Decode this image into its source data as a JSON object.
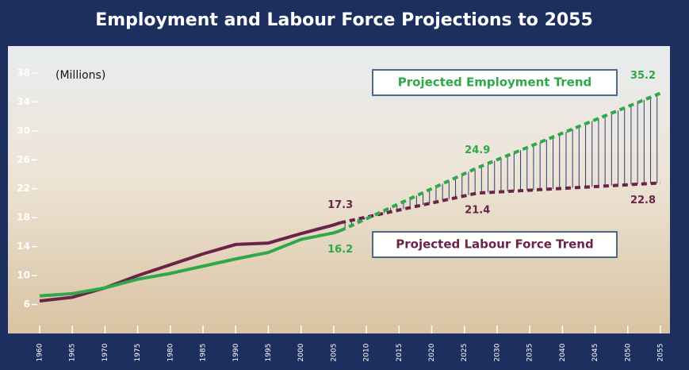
{
  "chart_data": {
    "type": "line",
    "title": "Employment and Labour Force Projections to 2055",
    "y_label": "(Millions)",
    "x": [
      1960,
      1965,
      1970,
      1975,
      1980,
      1985,
      1990,
      1995,
      2000,
      2005,
      2006,
      2027,
      2055
    ],
    "series": [
      {
        "color": "#6b2448",
        "values": [
          6.5,
          7.0,
          8.3,
          10.0,
          11.5,
          13.0,
          14.3,
          14.5,
          15.8,
          17.0,
          17.3,
          null,
          null
        ]
      },
      {
        "color": "#2fa84a",
        "values": [
          7.2,
          7.5,
          8.3,
          9.5,
          10.3,
          11.3,
          12.3,
          13.2,
          15.0,
          15.9,
          16.2,
          null,
          null
        ]
      },
      {
        "name": "Projected Labour Force Trend",
        "color": "#6b2448",
        "dashed": true,
        "values": [
          null,
          null,
          null,
          null,
          null,
          null,
          null,
          null,
          null,
          null,
          17.3,
          21.4,
          22.8
        ]
      },
      {
        "name": "Projected Employment Trend",
        "color": "#2fa84a",
        "dashed": true,
        "values": [
          null,
          null,
          null,
          null,
          null,
          null,
          null,
          null,
          null,
          null,
          16.2,
          24.9,
          35.2
        ]
      }
    ],
    "xlim": [
      1960,
      2055
    ],
    "xticks": [
      1960,
      1965,
      1970,
      1975,
      1980,
      1985,
      1990,
      1995,
      2000,
      2005,
      2010,
      2015,
      2020,
      2025,
      2030,
      2035,
      2040,
      2045,
      2050,
      2055
    ],
    "ylim": [
      2,
      41.5
    ],
    "yticks": [
      6,
      10,
      14,
      18,
      22,
      26,
      30,
      34,
      38
    ]
  }
}
